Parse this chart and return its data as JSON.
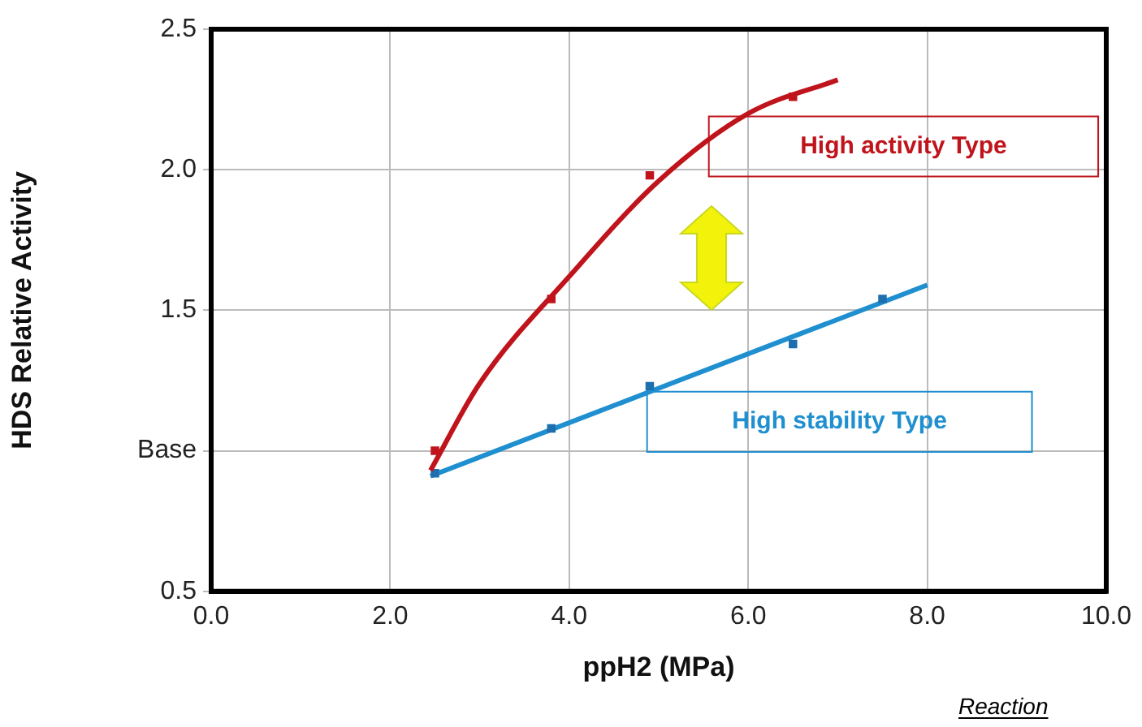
{
  "chart_data": {
    "type": "scatter",
    "xlabel": "ppH2 (MPa)",
    "ylabel": "HDS Relative Activity",
    "xlim": [
      0,
      10
    ],
    "xticks": [
      {
        "value": 0,
        "label": "0.0"
      },
      {
        "value": 2,
        "label": "2.0"
      },
      {
        "value": 4,
        "label": "4.0"
      },
      {
        "value": 6,
        "label": "6.0"
      },
      {
        "value": 8,
        "label": "8.0"
      },
      {
        "value": 10,
        "label": "10.0"
      }
    ],
    "ylim": [
      0.5,
      2.5
    ],
    "yticks": [
      {
        "value": 0.5,
        "label": "0.5"
      },
      {
        "value": 1,
        "label": "Base"
      },
      {
        "value": 1.5,
        "label": "1.5"
      },
      {
        "value": 2,
        "label": "2.0"
      },
      {
        "value": 2.5,
        "label": "2.5"
      }
    ],
    "grid": true,
    "legend": false,
    "marker": "square",
    "series": [
      {
        "color": "#c0141c",
        "x": [
          2.5,
          3.8,
          4.9,
          6.5
        ],
        "values": [
          1.0,
          1.54,
          1.98,
          2.26
        ]
      },
      {
        "type": "line",
        "name": "High activity Type",
        "color": "#c0141c",
        "marker": "none",
        "x": [
          2.45,
          3,
          4,
          5,
          6,
          7
        ],
        "values": [
          0.93,
          1.24,
          1.62,
          1.96,
          2.2,
          2.32
        ]
      },
      {
        "color": "#1f6fae",
        "x": [
          2.5,
          3.8,
          4.9,
          6.5,
          7.5
        ],
        "values": [
          0.92,
          1.08,
          1.23,
          1.38,
          1.54
        ]
      },
      {
        "type": "line",
        "name": "High stability Type",
        "color": "#1f8fd0",
        "marker": "none",
        "x": [
          2.45,
          8
        ],
        "values": [
          0.91,
          1.59
        ]
      }
    ],
    "annotations": [
      "Reaction"
    ]
  }
}
